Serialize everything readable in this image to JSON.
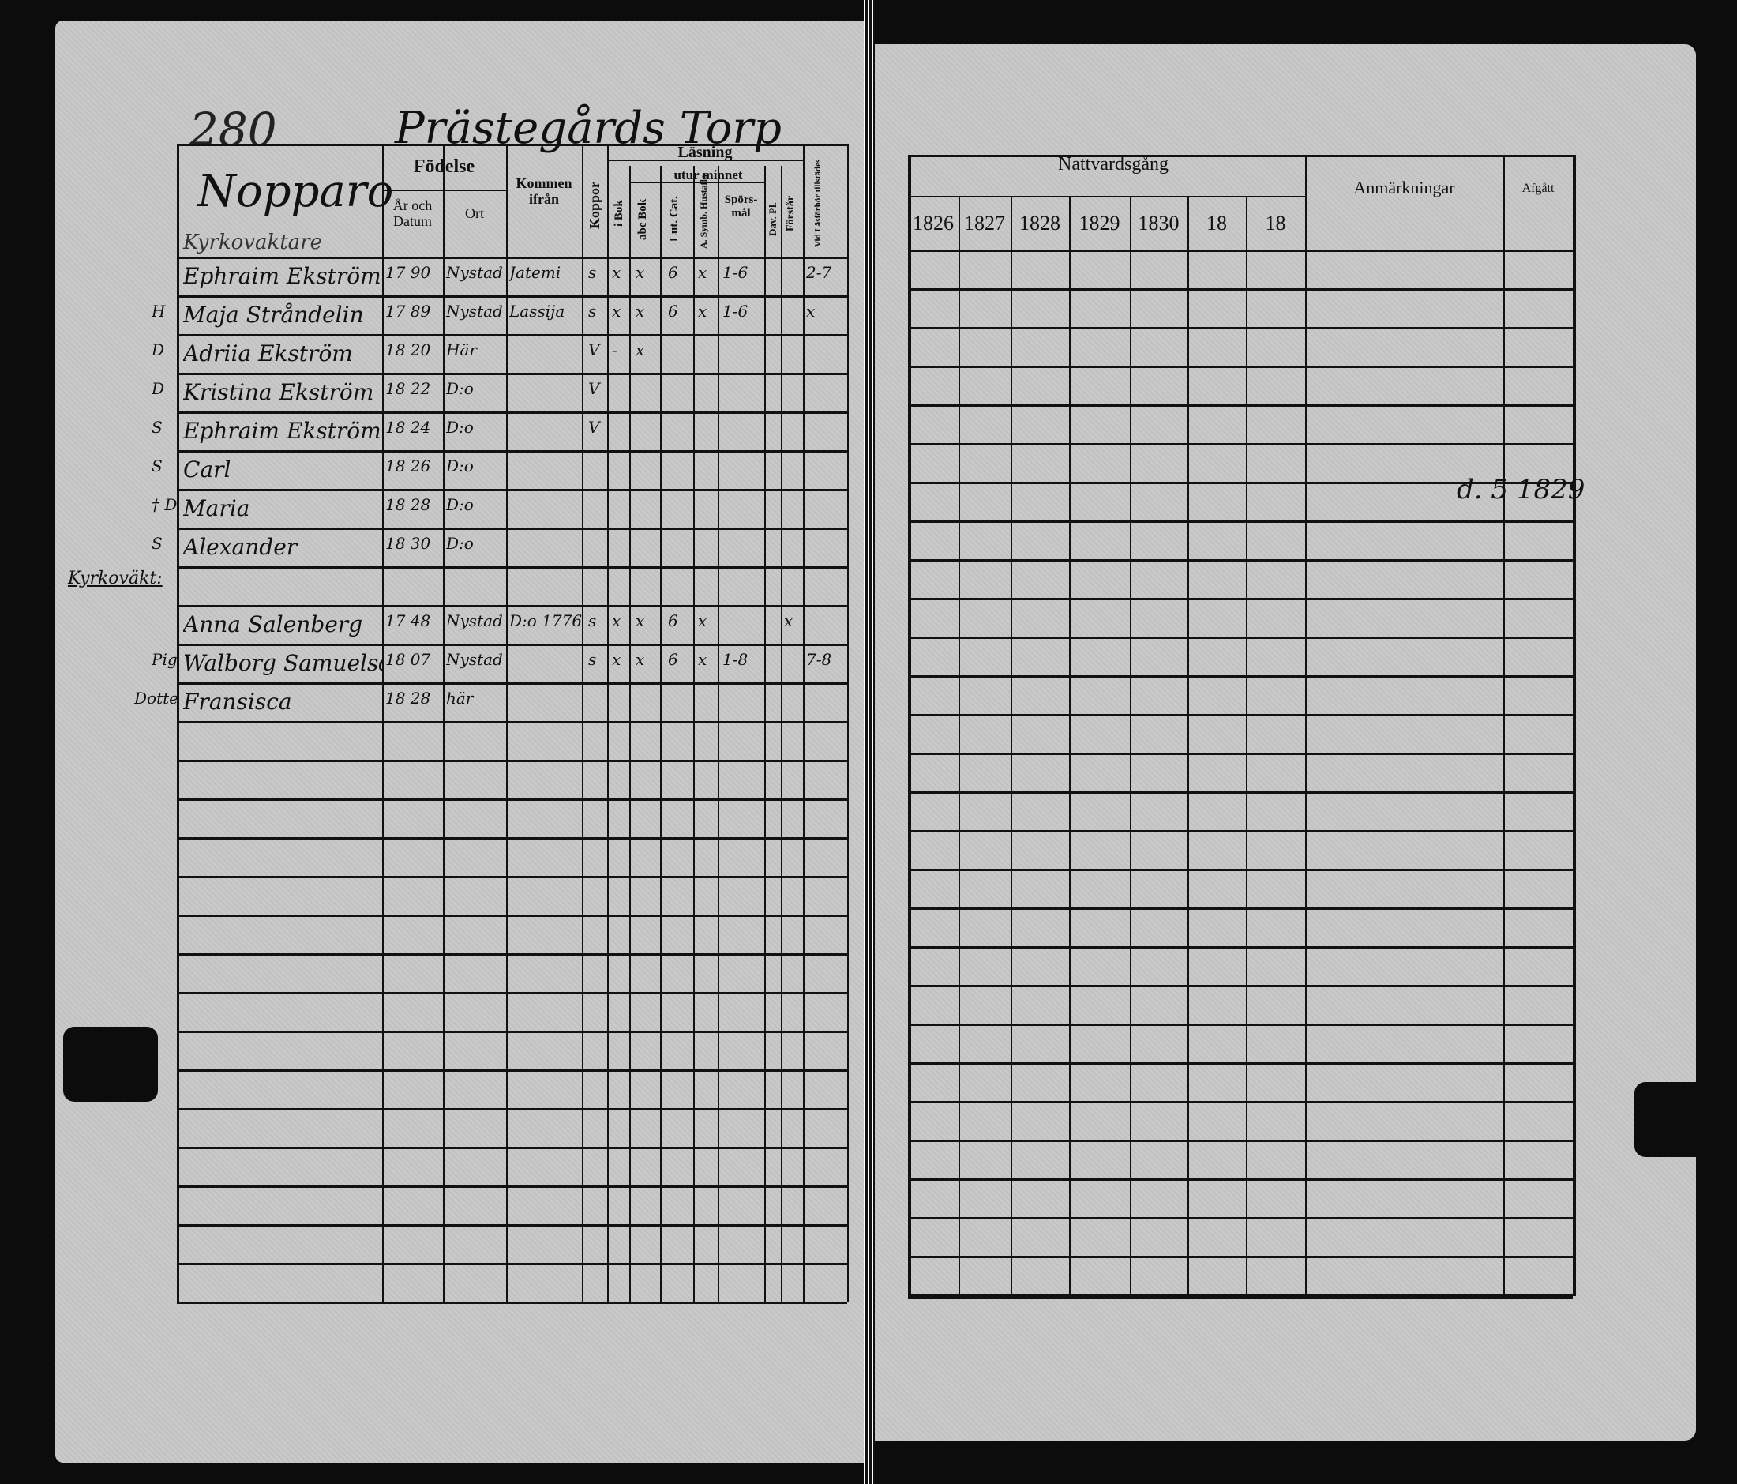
{
  "left_page": {
    "page_number": "280",
    "place": "Prästegårds Torp",
    "household_heading": "Nopparo",
    "household_subheading": "Kyrkovaktare",
    "side_note": "Kyrkoväkt:",
    "headers": {
      "fodelse": "Födelse",
      "ar_och_datum": "År och Datum",
      "ort": "Ort",
      "kommen_ifran": "Kommen ifrån",
      "koppor": "Koppor",
      "lasning": "Läsning",
      "i_bok": "i Bok",
      "utur_minnet": "utur minnet",
      "abc_bok": "abc Bok",
      "lut_cat": "Lut. Cat.",
      "a_symb": "A. Symb. Hustafla",
      "sporsmal": "Spörs-mål",
      "dav_pl": "Dav. Pl.",
      "forstar": "Förstår",
      "tillstand": "Vid Läsförhör tillstädes"
    },
    "rows": [
      {
        "role": "",
        "name": "Ephraim Ekström",
        "date": "17 90",
        "place": "Nystad",
        "from": "Jatemi",
        "koppor": "s",
        "i_bok": "x",
        "abc": "x",
        "cat": "6",
        "symb": "x",
        "spors": "1-6",
        "dav": "",
        "forstar": "",
        "till": "2-7"
      },
      {
        "role": "H",
        "name": "Maja Stråndelin",
        "date": "17 89",
        "place": "Nystad",
        "from": "Lassija",
        "koppor": "s",
        "i_bok": "x",
        "abc": "x",
        "cat": "6",
        "symb": "x",
        "spors": "1-6",
        "dav": "",
        "forstar": "",
        "till": "x"
      },
      {
        "role": "D",
        "name": "Adriia Ekström",
        "date": "18 20",
        "place": "Här",
        "from": "",
        "koppor": "V",
        "i_bok": "-",
        "abc": "x",
        "cat": "",
        "symb": "",
        "spors": "",
        "dav": "",
        "forstar": "",
        "till": ""
      },
      {
        "role": "D",
        "name": "Kristina Ekström",
        "date": "18 22",
        "place": "D:o",
        "from": "",
        "koppor": "V",
        "i_bok": "",
        "abc": "",
        "cat": "",
        "symb": "",
        "spors": "",
        "dav": "",
        "forstar": "",
        "till": ""
      },
      {
        "role": "S",
        "name": "Ephraim Ekström",
        "date": "18 24",
        "place": "D:o",
        "from": "",
        "koppor": "V",
        "i_bok": "",
        "abc": "",
        "cat": "",
        "symb": "",
        "spors": "",
        "dav": "",
        "forstar": "",
        "till": ""
      },
      {
        "role": "S",
        "name": "Carl",
        "date": "18 26",
        "place": "D:o",
        "from": "",
        "koppor": "",
        "i_bok": "",
        "abc": "",
        "cat": "",
        "symb": "",
        "spors": "",
        "dav": "",
        "forstar": "",
        "till": ""
      },
      {
        "role": "† D",
        "name": "Maria",
        "date": "18 28",
        "place": "D:o",
        "from": "",
        "koppor": "",
        "i_bok": "",
        "abc": "",
        "cat": "",
        "symb": "",
        "spors": "",
        "dav": "",
        "forstar": "",
        "till": ""
      },
      {
        "role": "S",
        "name": "Alexander",
        "date": "18 30",
        "place": "D:o",
        "from": "",
        "koppor": "",
        "i_bok": "",
        "abc": "",
        "cat": "",
        "symb": "",
        "spors": "",
        "dav": "",
        "forstar": "",
        "till": ""
      },
      {
        "role": "",
        "name": "",
        "date": "",
        "place": "",
        "from": "",
        "koppor": "",
        "i_bok": "",
        "abc": "",
        "cat": "",
        "symb": "",
        "spors": "",
        "dav": "",
        "forstar": "",
        "till": ""
      },
      {
        "role": "",
        "name": "Anna Salenberg",
        "date": "17 48",
        "place": "Nystad",
        "from": "D:o 1776",
        "koppor": "s",
        "i_bok": "x",
        "abc": "x",
        "cat": "6",
        "symb": "x",
        "spors": "",
        "dav": "",
        "forstar": "x",
        "till": ""
      },
      {
        "role": "Pig",
        "name": "Walborg Samuelsd",
        "date": "18 07",
        "place": "Nystad",
        "from": "",
        "koppor": "s",
        "i_bok": "x",
        "abc": "x",
        "cat": "6",
        "symb": "x",
        "spors": "1-8",
        "dav": "",
        "forstar": "",
        "till": "7-8"
      },
      {
        "role": "Dotter",
        "name": "Fransisca",
        "date": "18 28",
        "place": "här",
        "from": "",
        "koppor": "",
        "i_bok": "",
        "abc": "",
        "cat": "",
        "symb": "",
        "spors": "",
        "dav": "",
        "forstar": "",
        "till": ""
      }
    ]
  },
  "right_page": {
    "headers": {
      "nattvardsgang": "Nattvardsgång",
      "years": [
        "1826",
        "1827",
        "1828",
        "1829",
        "1830",
        "18",
        "18"
      ],
      "anmarkningar": "Anmärkningar",
      "afgatt": "Afgått"
    },
    "afgatt_note": "d. 5 1829"
  },
  "colors": {
    "paper": "#c9c9c9",
    "ink": "#111111",
    "background": "#0c0c0c"
  }
}
